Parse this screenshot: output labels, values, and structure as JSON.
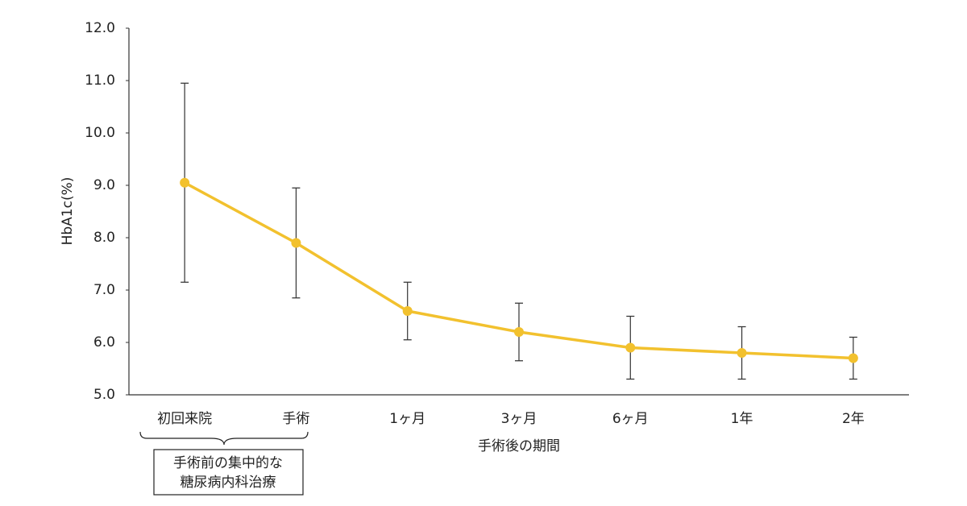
{
  "chart_data": {
    "type": "line",
    "y_label": "HbA1c(%)",
    "x_label": "手術後の期間",
    "categories": [
      "初回来院",
      "手術",
      "1ヶ月",
      "3ヶ月",
      "6ヶ月",
      "1年",
      "2年"
    ],
    "series": [
      {
        "color": "#f2c12e",
        "values": [
          9.05,
          7.9,
          6.6,
          6.2,
          5.9,
          5.8,
          5.7
        ],
        "errors": [
          1.9,
          1.05,
          0.55,
          0.55,
          0.6,
          0.5,
          0.4
        ]
      }
    ],
    "ylim": [
      5,
      12
    ],
    "yticks": [
      {
        "value": 5,
        "label": "5.0"
      },
      {
        "value": 6,
        "label": "6.0"
      },
      {
        "value": 7,
        "label": "7.0"
      },
      {
        "value": 8,
        "label": "8.0"
      },
      {
        "value": 9,
        "label": "9.0"
      },
      {
        "value": 10,
        "label": "10.0"
      },
      {
        "value": 11,
        "label": "11.0"
      },
      {
        "value": 12,
        "label": "12.0"
      }
    ],
    "annotation": [
      "手術前の集中的な",
      "糖尿病内科治療"
    ]
  }
}
